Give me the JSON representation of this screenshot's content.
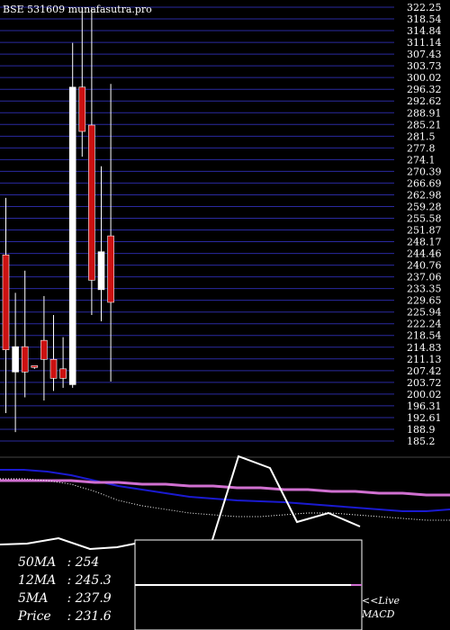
{
  "title": "BSE 531609 munafasutra.pro",
  "colors": {
    "background": "#000000",
    "grid": "#2a2aa0",
    "up_candle": "#ffffff",
    "down_candle": "#cc1111",
    "ma_line_blue": "#1a1ad0",
    "ma_line_pink": "#d070d0",
    "text": "#ffffff"
  },
  "chart_data": [
    {
      "type": "candlestick",
      "y_axis_ticks": [
        "322.25",
        "318.54",
        "314.84",
        "311.14",
        "307.43",
        "303.73",
        "300.02",
        "296.32",
        "292.62",
        "288.91",
        "285.21",
        "281.5",
        "277.8",
        "274.1",
        "270.39",
        "266.69",
        "262.98",
        "259.28",
        "255.58",
        "251.87",
        "248.17",
        "244.46",
        "240.76",
        "237.06",
        "233.35",
        "229.65",
        "225.94",
        "222.24",
        "218.54",
        "214.83",
        "211.13",
        "207.42",
        "203.72",
        "200.02",
        "196.31",
        "192.61",
        "188.9",
        "185.2"
      ],
      "ylim": [
        185.2,
        322.25
      ],
      "candles": [
        {
          "open": 214.0,
          "high": 262.0,
          "low": 194.0,
          "close": 244.0,
          "color": "red"
        },
        {
          "open": 207.0,
          "high": 232.0,
          "low": 188.0,
          "close": 215.0,
          "color": "white"
        },
        {
          "open": 215.0,
          "high": 239.0,
          "low": 199.0,
          "close": 207.0,
          "color": "red"
        },
        {
          "open": 209.0,
          "high": 209.0,
          "low": 208.0,
          "close": 209.0,
          "color": "red"
        },
        {
          "open": 217.0,
          "high": 231.0,
          "low": 198.0,
          "close": 211.0,
          "color": "red"
        },
        {
          "open": 211.0,
          "high": 225.0,
          "low": 201.0,
          "close": 205.0,
          "color": "red"
        },
        {
          "open": 205.0,
          "high": 218.0,
          "low": 202.0,
          "close": 208.0,
          "color": "red"
        },
        {
          "open": 203.0,
          "high": 311.0,
          "low": 202.0,
          "close": 297.0,
          "color": "white"
        },
        {
          "open": 297.0,
          "high": 322.0,
          "low": 275.0,
          "close": 283.0,
          "color": "red"
        },
        {
          "open": 285.0,
          "high": 322.0,
          "low": 225.0,
          "close": 236.0,
          "color": "red"
        },
        {
          "open": 233.0,
          "high": 272.0,
          "low": 223.0,
          "close": 245.0,
          "color": "white"
        },
        {
          "open": 250.0,
          "high": 298.0,
          "low": 204.0,
          "close": 229.0,
          "color": "red"
        }
      ]
    },
    {
      "type": "line",
      "panel": "moving-averages",
      "series": [
        {
          "values": [
            522,
            522,
            524,
            528,
            534,
            540,
            544,
            548,
            552,
            554,
            556,
            557,
            558,
            560,
            562,
            564,
            566,
            568,
            568,
            566
          ],
          "color": "blue"
        },
        {
          "values": [
            534,
            534,
            534,
            534,
            536,
            536,
            538,
            538,
            540,
            540,
            542,
            542,
            544,
            544,
            546,
            546,
            548,
            548,
            550,
            550
          ],
          "color": "pink"
        },
        {
          "values": [
            532,
            532,
            534,
            538,
            546,
            556,
            562,
            566,
            570,
            572,
            574,
            574,
            572,
            570,
            570,
            572,
            574,
            576,
            578,
            578
          ],
          "color": "dotted-white"
        }
      ]
    }
  ],
  "stats": {
    "ma50_label": "50MA",
    "ma50_value": ": 254",
    "ma12_label": "12MA",
    "ma12_value": ": 245.3",
    "ma5_label": "5MA",
    "ma5_value": ": 237.9",
    "price_label": "Price",
    "price_value": ": 231.6"
  },
  "macd_label": {
    "line1": "<<Live",
    "line2": "MACD"
  }
}
